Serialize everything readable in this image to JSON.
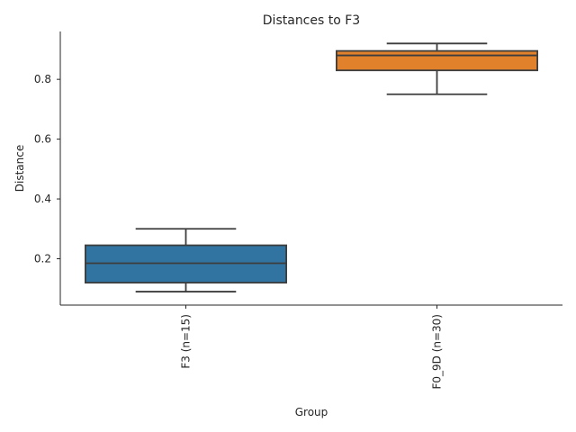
{
  "chart_data": {
    "type": "box",
    "title": "Distances to F3",
    "xlabel": "Group",
    "ylabel": "Distance",
    "categories": [
      "F3 (n=15)",
      "F0_9D (n=30)"
    ],
    "boxes": [
      {
        "category": "F3 (n=15)",
        "min": 0.09,
        "q1": 0.12,
        "median": 0.185,
        "q3": 0.245,
        "max": 0.3,
        "color": "#3274a1"
      },
      {
        "category": "F0_9D (n=30)",
        "min": 0.75,
        "q1": 0.83,
        "median": 0.88,
        "q3": 0.895,
        "max": 0.92,
        "color": "#e1812c"
      }
    ],
    "ylim": [
      0.045,
      0.96
    ],
    "yticks": [
      0.2,
      0.4,
      0.6,
      0.8
    ],
    "grid": false,
    "legend": "none"
  }
}
